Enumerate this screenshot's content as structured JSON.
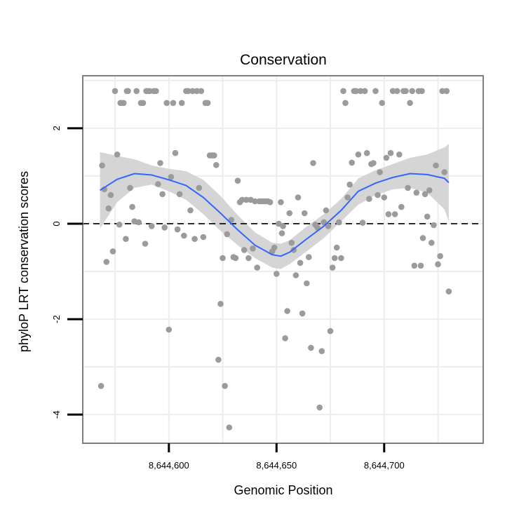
{
  "chart_data": {
    "type": "scatter",
    "title": "Conservation",
    "xlabel": "Genomic Position",
    "ylabel": "phyloP LRT conservation scores",
    "xlim": [
      8644560,
      8644746
    ],
    "ylim": [
      -4.6,
      3.1
    ],
    "xticks": [
      8644600,
      8644650,
      8644700
    ],
    "xtick_labels": [
      "8,644,600",
      "8,644,650",
      "8,644,700"
    ],
    "yticks": [
      -4,
      -2,
      0,
      2
    ],
    "ytick_labels": [
      "-4",
      "-2",
      "0",
      "2"
    ],
    "reference_line": 0,
    "grid": true,
    "points": [
      [
        8644568.5,
        -3.4
      ],
      [
        8644569,
        1.22
      ],
      [
        8644570,
        0.72
      ],
      [
        8644571,
        -0.8
      ],
      [
        8644572,
        0.32
      ],
      [
        8644573,
        0.6
      ],
      [
        8644574,
        -0.58
      ],
      [
        8644575,
        2.78
      ],
      [
        8644576,
        1.45
      ],
      [
        8644577,
        -0.02
      ],
      [
        8644577.5,
        2.53
      ],
      [
        8644578,
        2.53
      ],
      [
        8644579,
        2.53
      ],
      [
        8644580,
        -0.32
      ],
      [
        8644580.5,
        2.78
      ],
      [
        8644581,
        2.78
      ],
      [
        8644582,
        0.75
      ],
      [
        8644583,
        0.35
      ],
      [
        8644584,
        0.05
      ],
      [
        8644585,
        2.78
      ],
      [
        8644586,
        0.03
      ],
      [
        8644587,
        2.53
      ],
      [
        8644588,
        2.53
      ],
      [
        8644589,
        -0.42
      ],
      [
        8644589.5,
        2.78
      ],
      [
        8644590,
        2.78
      ],
      [
        8644591,
        2.78
      ],
      [
        8644592,
        -0.05
      ],
      [
        8644593,
        2.78
      ],
      [
        8644594,
        2.78
      ],
      [
        8644595,
        0.83
      ],
      [
        8644596,
        1.27
      ],
      [
        8644597,
        0.62
      ],
      [
        8644598,
        -0.08
      ],
      [
        8644599,
        2.53
      ],
      [
        8644600,
        -2.22
      ],
      [
        8644601,
        0.98
      ],
      [
        8644602,
        2.53
      ],
      [
        8644603,
        1.48
      ],
      [
        8644604,
        -0.12
      ],
      [
        8644605,
        0.62
      ],
      [
        8644606,
        2.53
      ],
      [
        8644607,
        -0.25
      ],
      [
        8644608,
        2.78
      ],
      [
        8644609,
        2.78
      ],
      [
        8644610,
        0.28
      ],
      [
        8644611,
        2.78
      ],
      [
        8644612,
        -0.32
      ],
      [
        8644613,
        2.78
      ],
      [
        8644614,
        0.75
      ],
      [
        8644615,
        2.78
      ],
      [
        8644616,
        -0.28
      ],
      [
        8644617,
        2.53
      ],
      [
        8644618,
        2.53
      ],
      [
        8644619,
        1.43
      ],
      [
        8644620,
        1.43
      ],
      [
        8644621,
        1.43
      ],
      [
        8644622,
        1.23
      ],
      [
        8644623,
        -2.85
      ],
      [
        8644624,
        -1.68
      ],
      [
        8644625,
        -0.72
      ],
      [
        8644626,
        -3.4
      ],
      [
        8644627,
        -0.22
      ],
      [
        8644628,
        -4.27
      ],
      [
        8644629,
        0.08
      ],
      [
        8644630,
        -0.7
      ],
      [
        8644631,
        -0.72
      ],
      [
        8644632,
        0.9
      ],
      [
        8644633,
        0.45
      ],
      [
        8644634,
        0.5
      ],
      [
        8644635,
        -0.55
      ],
      [
        8644636,
        0.5
      ],
      [
        8644637,
        -0.72
      ],
      [
        8644638,
        0.5
      ],
      [
        8644639,
        -0.52
      ],
      [
        8644640,
        0.47
      ],
      [
        8644641,
        -0.92
      ],
      [
        8644642,
        0.47
      ],
      [
        8644643,
        0.47
      ],
      [
        8644644,
        0.47
      ],
      [
        8644645,
        0.47
      ],
      [
        8644646,
        0.47
      ],
      [
        8644647,
        0.45
      ],
      [
        8644648,
        -0.58
      ],
      [
        8644649,
        -0.5
      ],
      [
        8644650,
        -1.05
      ],
      [
        8644651,
        0.0
      ],
      [
        8644652,
        0.45
      ],
      [
        8644652.5,
        -0.2
      ],
      [
        8644653,
        -0.05
      ],
      [
        8644654,
        -2.4
      ],
      [
        8644655,
        -1.83
      ],
      [
        8644656,
        0.22
      ],
      [
        8644657,
        -0.4
      ],
      [
        8644658,
        -0.55
      ],
      [
        8644659,
        -1.08
      ],
      [
        8644660,
        0.55
      ],
      [
        8644661,
        -0.82
      ],
      [
        8644662,
        -1.88
      ],
      [
        8644663,
        0.22
      ],
      [
        8644664,
        -1.25
      ],
      [
        8644665,
        -0.7
      ],
      [
        8644666,
        -2.6
      ],
      [
        8644667,
        1.27
      ],
      [
        8644668,
        -0.02
      ],
      [
        8644669,
        -0.08
      ],
      [
        8644670,
        -3.85
      ],
      [
        8644671,
        -2.67
      ],
      [
        8644672,
        0.03
      ],
      [
        8644673,
        0.28
      ],
      [
        8644674,
        -0.05
      ],
      [
        8644675,
        -2.25
      ],
      [
        8644676,
        -0.92
      ],
      [
        8644677,
        -0.72
      ],
      [
        8644678,
        -0.5
      ],
      [
        8644679,
        0.03
      ],
      [
        8644680,
        -0.72
      ],
      [
        8644681,
        2.78
      ],
      [
        8644682,
        2.53
      ],
      [
        8644683,
        0.55
      ],
      [
        8644684,
        0.82
      ],
      [
        8644685,
        1.28
      ],
      [
        8644686,
        2.78
      ],
      [
        8644687,
        2.78
      ],
      [
        8644688,
        1.45
      ],
      [
        8644689,
        2.78
      ],
      [
        8644690,
        0.02
      ],
      [
        8644691,
        2.78
      ],
      [
        8644692,
        1.48
      ],
      [
        8644693,
        0.52
      ],
      [
        8644694,
        1.25
      ],
      [
        8644695,
        1.27
      ],
      [
        8644696,
        2.78
      ],
      [
        8644697,
        0.6
      ],
      [
        8644698,
        1.08
      ],
      [
        8644699,
        2.53
      ],
      [
        8644700,
        0.55
      ],
      [
        8644701,
        1.38
      ],
      [
        8644702,
        0.2
      ],
      [
        8644703,
        1.48
      ],
      [
        8644704,
        2.78
      ],
      [
        8644705,
        0.2
      ],
      [
        8644706,
        2.78
      ],
      [
        8644707,
        1.45
      ],
      [
        8644708,
        0.35
      ],
      [
        8644709,
        2.78
      ],
      [
        8644710,
        2.78
      ],
      [
        8644711,
        0.75
      ],
      [
        8644712,
        2.53
      ],
      [
        8644713,
        2.78
      ],
      [
        8644714,
        -0.88
      ],
      [
        8644715,
        0.65
      ],
      [
        8644716,
        2.78
      ],
      [
        8644717,
        -0.88
      ],
      [
        8644717.5,
        2.78
      ],
      [
        8644718,
        -0.3
      ],
      [
        8644719,
        0.62
      ],
      [
        8644720,
        0.15
      ],
      [
        8644721,
        0.7
      ],
      [
        8644722,
        -0.4
      ],
      [
        8644723,
        -0.03
      ],
      [
        8644724,
        1.22
      ],
      [
        8644725,
        -0.85
      ],
      [
        8644726,
        -0.68
      ],
      [
        8644727,
        2.78
      ],
      [
        8644728,
        1.08
      ],
      [
        8644729,
        2.78
      ],
      [
        8644730,
        -1.42
      ]
    ],
    "smooth": {
      "x": [
        8644568,
        8644576,
        8644584,
        8644592,
        8644600,
        8644608,
        8644616,
        8644624,
        8644632,
        8644640,
        8644648,
        8644652,
        8644656,
        8644664,
        8644672,
        8644680,
        8644688,
        8644696,
        8644704,
        8644712,
        8644720,
        8644728,
        8644730
      ],
      "y": [
        0.7,
        0.93,
        1.05,
        1.02,
        0.92,
        0.8,
        0.55,
        0.22,
        -0.13,
        -0.45,
        -0.65,
        -0.68,
        -0.6,
        -0.32,
        -0.05,
        0.28,
        0.68,
        0.85,
        0.97,
        1.05,
        1.03,
        0.95,
        0.86
      ],
      "lower": [
        -0.1,
        0.45,
        0.75,
        0.82,
        0.68,
        0.5,
        0.2,
        -0.15,
        -0.45,
        -0.72,
        -0.92,
        -0.95,
        -0.85,
        -0.58,
        -0.3,
        0.05,
        0.4,
        0.6,
        0.72,
        0.75,
        0.65,
        0.3,
        0.05
      ],
      "upper": [
        1.5,
        1.42,
        1.35,
        1.22,
        1.15,
        1.1,
        0.92,
        0.58,
        0.18,
        -0.18,
        -0.4,
        -0.42,
        -0.35,
        -0.06,
        0.2,
        0.52,
        0.95,
        1.12,
        1.25,
        1.38,
        1.45,
        1.6,
        1.67
      ]
    },
    "colors": {
      "points": "#9b9b9b",
      "smooth_line": "#3366ff",
      "ribbon": "#d3d3d3",
      "panel_border": "#7f7f7f",
      "grid": "#ededed"
    }
  }
}
